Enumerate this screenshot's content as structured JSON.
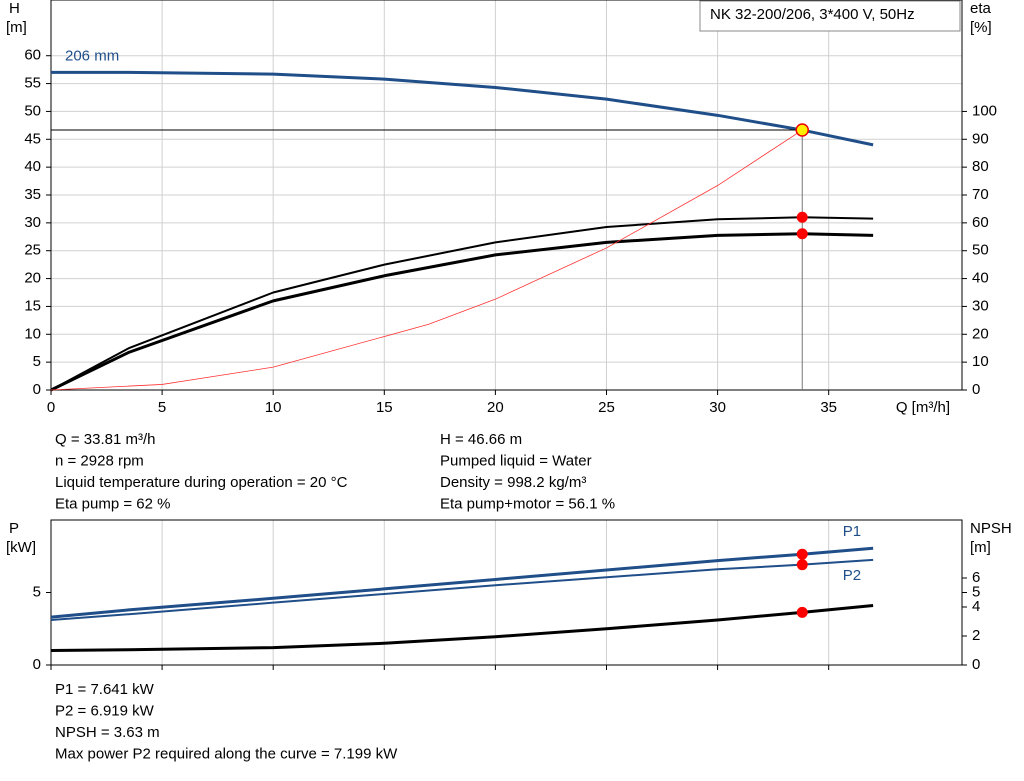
{
  "chart_data": [
    {
      "type": "line",
      "ylabel": "H",
      "yunit": "[m]",
      "y2label": "eta",
      "y2unit": "[%]",
      "xlabel": "Q [m³/h]",
      "box": "NK 32-200/206, 3*400 V, 50Hz",
      "xlim": [
        0,
        41
      ],
      "xticks": [
        0,
        5,
        10,
        15,
        20,
        25,
        30,
        35
      ],
      "ylim": [
        0,
        70
      ],
      "yticks": [
        0,
        5,
        10,
        15,
        20,
        25,
        30,
        35,
        40,
        45,
        50,
        55,
        60
      ],
      "y2lim": [
        0,
        140
      ],
      "y2ticks": [
        0,
        10,
        20,
        30,
        40,
        50,
        60,
        70,
        80,
        90,
        100
      ],
      "grid": "xy",
      "show_xtick_labels": true,
      "series": [
        {
          "name": "206 mm",
          "color": "#1f4e89",
          "width": 3,
          "x": [
            0,
            3.5,
            10,
            15,
            20,
            25,
            30,
            33.81,
            37
          ],
          "values": [
            57,
            57,
            56.7,
            55.8,
            54.3,
            52.2,
            49.3,
            46.66,
            44
          ]
        },
        {
          "color": "#000000",
          "width": 2,
          "axis": "y2",
          "x": [
            0,
            3.5,
            10,
            15,
            20,
            25,
            30,
            33.81,
            37
          ],
          "values": [
            0,
            15,
            35,
            45,
            53,
            58.5,
            61.3,
            62,
            61.5
          ]
        },
        {
          "color": "#000000",
          "width": 3,
          "axis": "y2",
          "x": [
            0,
            3.5,
            10,
            15,
            20,
            25,
            30,
            33.81,
            37
          ],
          "values": [
            0,
            13.5,
            32,
            41,
            48.5,
            53,
            55.5,
            56.1,
            55.5
          ]
        },
        {
          "color": "#ff3333",
          "width": 0.8,
          "x": [
            0,
            5,
            10,
            17,
            20,
            25,
            30,
            33.81
          ],
          "values": [
            0,
            1,
            4.1,
            11.8,
            16.3,
            25.5,
            36.7,
            46.66
          ]
        }
      ],
      "markers": [
        {
          "x": 33.81,
          "y": 46.66,
          "color": "#ffee00",
          "crosshair": true
        },
        {
          "x": 33.81,
          "y": 62,
          "axis": "y2",
          "color": "#ff0000"
        },
        {
          "x": 33.81,
          "y": 56.1,
          "axis": "y2",
          "color": "#ff0000"
        }
      ],
      "notes_left": [
        "Q = 33.81 m³/h",
        "n = 2928 rpm",
        "Liquid temperature during operation = 20 °C",
        "Eta pump = 62 %"
      ],
      "notes_right": [
        "H = 46.66 m",
        "Pumped liquid = Water",
        "Density = 998.2 kg/m³",
        "Eta pump+motor = 56.1 %"
      ]
    },
    {
      "type": "line",
      "ylabel": "P",
      "yunit": "[kW]",
      "y2label": "NPSH",
      "y2unit": "[m]",
      "xlim": [
        0,
        41
      ],
      "xticks": [
        0,
        5,
        10,
        15,
        20,
        25,
        30,
        35
      ],
      "ylim": [
        0,
        10
      ],
      "yticks": [
        0,
        5
      ],
      "y2lim": [
        0,
        10
      ],
      "y2ticks": [
        0,
        2,
        4,
        5,
        6
      ],
      "grid": "x",
      "show_xtick_labels": false,
      "series": [
        {
          "name": "P1",
          "color": "#1f4e89",
          "width": 3,
          "x": [
            0,
            3.5,
            10,
            20,
            30,
            33.81,
            37
          ],
          "values": [
            3.3,
            3.8,
            4.6,
            5.9,
            7.2,
            7.641,
            8.05
          ]
        },
        {
          "name": "P2",
          "color": "#1f4e89",
          "width": 2,
          "x": [
            0,
            3.5,
            10,
            20,
            30,
            33.81,
            37
          ],
          "values": [
            3.1,
            3.5,
            4.3,
            5.5,
            6.6,
            6.919,
            7.25
          ]
        },
        {
          "color": "#000000",
          "width": 3,
          "axis": "y2",
          "x": [
            0,
            3.5,
            10,
            15,
            20,
            25,
            30,
            33.81,
            37
          ],
          "values": [
            1.0,
            1.05,
            1.2,
            1.5,
            1.95,
            2.5,
            3.1,
            3.63,
            4.1
          ]
        }
      ],
      "markers": [
        {
          "x": 33.81,
          "y": 7.641,
          "color": "#ff0000"
        },
        {
          "x": 33.81,
          "y": 6.919,
          "color": "#ff0000"
        },
        {
          "x": 33.81,
          "y": 3.63,
          "axis": "y2",
          "color": "#ff0000"
        }
      ],
      "notes_left": [
        "P1 = 7.641 kW",
        "P2 = 6.919 kW",
        "NPSH = 3.63 m",
        "Max power P2 required along the curve = 7.199 kW"
      ]
    }
  ]
}
